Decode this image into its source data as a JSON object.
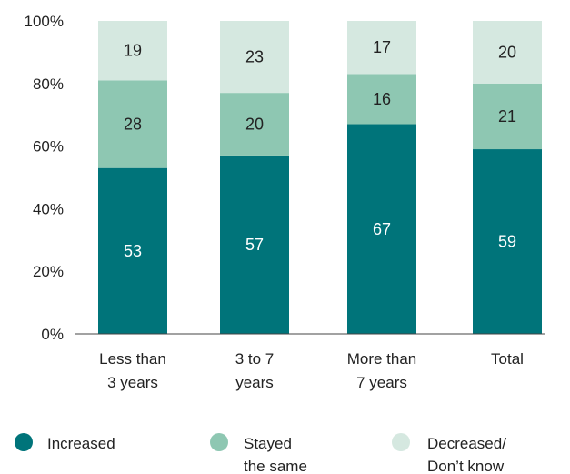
{
  "chart_data": {
    "type": "bar",
    "stacked": true,
    "categories": [
      [
        "Less than",
        "3 years"
      ],
      [
        "3 to 7",
        "years"
      ],
      [
        "More than",
        "7 years"
      ],
      [
        "Total"
      ]
    ],
    "series": [
      {
        "name": "Increased",
        "color": "#00747A",
        "label_color": "#ffffff",
        "values": [
          53,
          57,
          67,
          59
        ]
      },
      {
        "name": "Stayed the same",
        "color": "#8EC7B2",
        "label_color": "#222222",
        "values": [
          28,
          20,
          16,
          21
        ]
      },
      {
        "name": "Decreased/ Don't know",
        "color": "#D5E8E0",
        "label_color": "#222222",
        "values": [
          19,
          23,
          17,
          20
        ]
      }
    ],
    "legend_lines": [
      [
        "Increased"
      ],
      [
        "Stayed",
        "the same"
      ],
      [
        "Decreased/",
        "Don’t know"
      ]
    ],
    "y_ticks": [
      "0%",
      "20%",
      "40%",
      "60%",
      "80%",
      "100%"
    ],
    "ylim": [
      0,
      100
    ],
    "grid": false,
    "legend_position": "bottom"
  }
}
